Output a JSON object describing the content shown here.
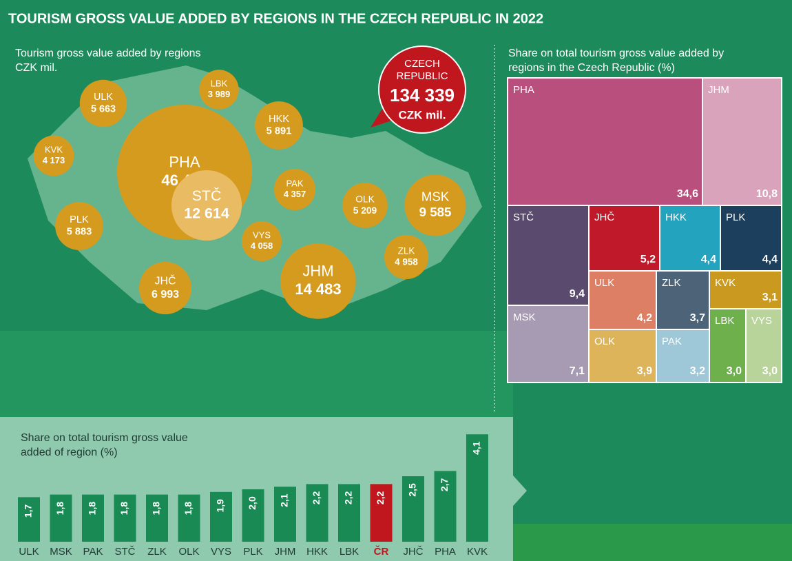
{
  "title": "TOURISM GROSS VALUE ADDED BY REGIONS IN THE CZECH REPUBLIC IN 2022",
  "chart_data": [
    {
      "type": "bubble",
      "title": "Tourism gross value added by regions",
      "subtitle": "CZK mil.",
      "categories": [
        "ULK",
        "LBK",
        "KVK",
        "PHA",
        "HKK",
        "STČ",
        "PAK",
        "OLK",
        "MSK",
        "PLK",
        "VYS",
        "ZLK",
        "JHČ",
        "JHM"
      ],
      "values": [
        5663,
        3989,
        4173,
        46483,
        5891,
        12614,
        4357,
        5209,
        9585,
        5883,
        4058,
        4958,
        6993,
        14483
      ],
      "value_labels": [
        "5 663",
        "3 989",
        "4 173",
        "46 483",
        "5 891",
        "12 614",
        "4 357",
        "5 209",
        "9 585",
        "5 883",
        "4 058",
        "4 958",
        "6 993",
        "14 483"
      ],
      "color": "#d59b1e",
      "total": {
        "label": "CZECH REPUBLIC",
        "value": 134339,
        "value_label": "134 339",
        "unit": "CZK mil.",
        "color": "#c0161e"
      }
    },
    {
      "type": "treemap",
      "title": "Share on total tourism gross value added by regions in the Czech Republic (%)",
      "categories": [
        "PHA",
        "JHM",
        "STČ",
        "JHČ",
        "HKK",
        "PLK",
        "ULK",
        "ZLK",
        "KVK",
        "MSK",
        "OLK",
        "PAK",
        "LBK",
        "VYS"
      ],
      "values": [
        34.6,
        10.8,
        9.4,
        5.2,
        4.4,
        4.4,
        4.2,
        3.7,
        3.1,
        7.1,
        3.9,
        3.2,
        3.0,
        3.0
      ],
      "value_labels": [
        "34,6",
        "10,8",
        "9,4",
        "5,2",
        "4,4",
        "4,4",
        "4,2",
        "3,7",
        "3,1",
        "7,1",
        "3,9",
        "3,2",
        "3,0",
        "3,0"
      ],
      "colors": [
        "#b94f7c",
        "#d9a3bb",
        "#5a4b6e",
        "#c0192a",
        "#23a3bd",
        "#1c3f5e",
        "#dd7f64",
        "#4d6478",
        "#c99a1f",
        "#a69bb2",
        "#ddb45a",
        "#9ec7d8",
        "#6db04c",
        "#b8d49a"
      ]
    },
    {
      "type": "bar",
      "title": "Share on total tourism gross value added of region (%)",
      "categories": [
        "ULK",
        "MSK",
        "PAK",
        "STČ",
        "ZLK",
        "OLK",
        "VYS",
        "PLK",
        "JHM",
        "HKK",
        "LBK",
        "ČR",
        "JHČ",
        "PHA",
        "KVK"
      ],
      "values": [
        1.7,
        1.8,
        1.8,
        1.8,
        1.8,
        1.8,
        1.9,
        2.0,
        2.1,
        2.2,
        2.2,
        2.2,
        2.5,
        2.7,
        4.1
      ],
      "value_labels": [
        "1,7",
        "1,8",
        "1,8",
        "1,8",
        "1,8",
        "1,8",
        "1,9",
        "2,0",
        "2,1",
        "2,2",
        "2,2",
        "2,2",
        "2,5",
        "2,7",
        "4,1"
      ],
      "colors": [
        "#1a8a55",
        "#1a8a55",
        "#1a8a55",
        "#1a8a55",
        "#1a8a55",
        "#1a8a55",
        "#1a8a55",
        "#1a8a55",
        "#1a8a55",
        "#1a8a55",
        "#1a8a55",
        "#c0161e",
        "#1a8a55",
        "#1a8a55",
        "#1a8a55"
      ]
    }
  ]
}
